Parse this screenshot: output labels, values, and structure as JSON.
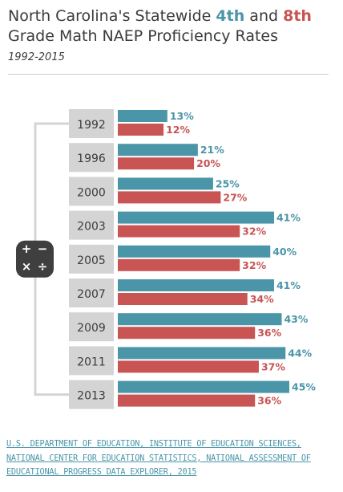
{
  "header": {
    "title_part1": "North Carolina's Statewide ",
    "title_4th": "4th",
    "title_and": " and ",
    "title_8th": "8th",
    "title_part2": "Grade Math NAEP Proficiency Rates",
    "subtitle": "1992-2015"
  },
  "icon": {
    "name": "calculator-icon",
    "color": "#3f3f3f",
    "glyphs": [
      "+",
      "−",
      "×",
      "÷"
    ]
  },
  "colors": {
    "grade4": "#4a95a8",
    "grade8": "#c95454",
    "year_box": "#d4d4d4",
    "bracket": "#d4d4d4"
  },
  "chart_data": {
    "type": "bar",
    "orientation": "horizontal",
    "categories": [
      "1992",
      "1996",
      "2000",
      "2003",
      "2005",
      "2007",
      "2009",
      "2011",
      "2013"
    ],
    "series": [
      {
        "color": "#4a95a8",
        "values": [
          13,
          21,
          25,
          41,
          40,
          41,
          43,
          44,
          45
        ]
      },
      {
        "color": "#c95454",
        "values": [
          12,
          20,
          27,
          32,
          32,
          34,
          36,
          37,
          36
        ]
      }
    ],
    "value_labels": [
      [
        "13%",
        "21%",
        "25%",
        "41%",
        "40%",
        "41%",
        "43%",
        "44%",
        "45%"
      ],
      [
        "12%",
        "20%",
        "27%",
        "32%",
        "32%",
        "34%",
        "36%",
        "37%",
        "36%"
      ]
    ],
    "xlim": [
      0,
      55
    ]
  },
  "source": "U.S. DEPARTMENT OF EDUCATION, INSTITUTE OF EDUCATION SCIENCES, NATIONAL CENTER FOR EDUCATION STATISTICS, NATIONAL ASSESSMENT OF EDUCATIONAL PROGRESS DATA EXPLORER, 2015"
}
